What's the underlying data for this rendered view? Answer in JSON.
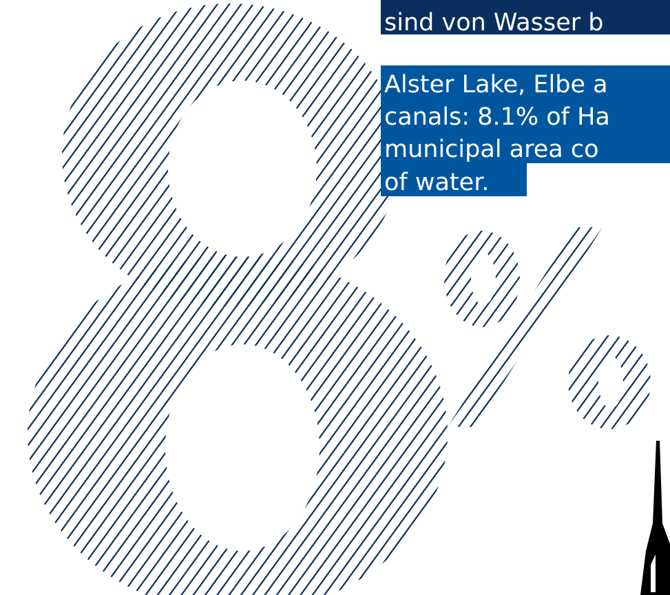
{
  "caption": {
    "german": "sind von Wasser b",
    "english": [
      "Alster Lake, Elbe a",
      "canals: 8.1% of Ha",
      "municipal area co",
      "of water."
    ]
  }
}
